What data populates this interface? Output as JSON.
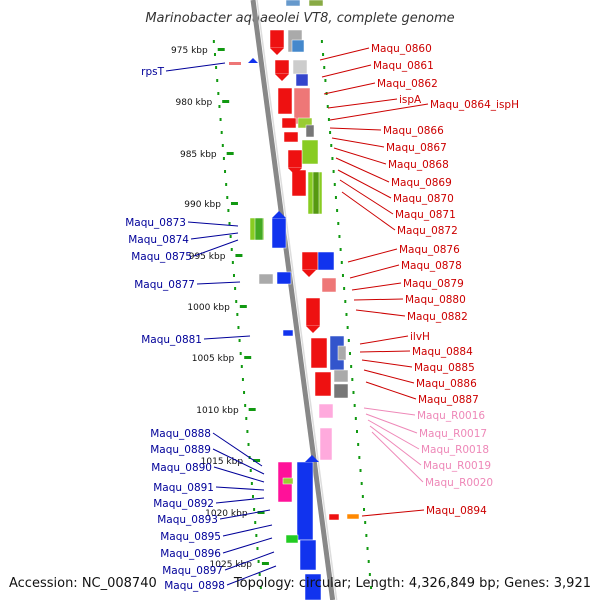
{
  "title": "Marinobacter aquaeolei VT8, complete genome",
  "footer": {
    "accession": "Accession: NC_008740",
    "summary": "Topology: circular; Length: 4,326,849 bp; Genes: 3,921"
  },
  "colors": {
    "forward_label": "#000099",
    "reverse_label": "#cc0000",
    "rna_label": "#ee88b8",
    "backbone": "#888888",
    "tick": "#119911"
  },
  "kbp_ticks": [
    "975 kbp",
    "980 kbp",
    "985 kbp",
    "990 kbp",
    "995 kbp",
    "1000 kbp",
    "1005 kbp",
    "1010 kbp",
    "1015 kbp",
    "1020 kbp",
    "1025 kbp"
  ],
  "genes_forward": [
    "rpsT",
    "Maqu_0873",
    "Maqu_0874",
    "Maqu_0875",
    "Maqu_0877",
    "Maqu_0881",
    "Maqu_0888",
    "Maqu_0889",
    "Maqu_0890",
    "Maqu_0891",
    "Maqu_0892",
    "Maqu_0893",
    "Maqu_0895",
    "Maqu_0896",
    "Maqu_0897",
    "Maqu_0898"
  ],
  "genes_reverse": [
    "Maqu_0860",
    "Maqu_0861",
    "Maqu_0862",
    "ispA",
    "Maqu_0864_ispH",
    "Maqu_0866",
    "Maqu_0867",
    "Maqu_0868",
    "Maqu_0869",
    "Maqu_0870",
    "Maqu_0871",
    "Maqu_0872",
    "Maqu_0876",
    "Maqu_0878",
    "Maqu_0879",
    "Maqu_0880",
    "Maqu_0882",
    "ilvH",
    "Maqu_0884",
    "Maqu_0885",
    "Maqu_0886",
    "Maqu_0887",
    "Maqu_0894"
  ],
  "genes_rna": [
    "Maqu_R0016",
    "Maqu_R0017",
    "Maqu_R0018",
    "Maqu_R0019",
    "Maqu_R0020"
  ]
}
